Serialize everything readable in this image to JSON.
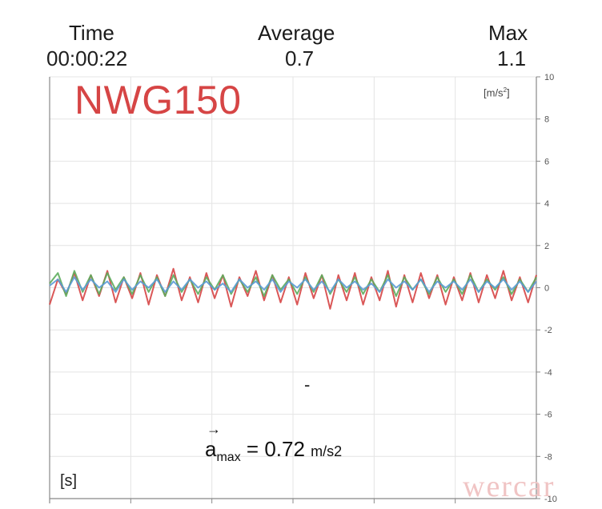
{
  "header": {
    "time_label": "Time",
    "time_value": "00:00:22",
    "average_label": "Average",
    "average_value": "0.7",
    "max_label": "Max",
    "max_value": "1.1"
  },
  "device_name": "NWG150",
  "chart_labels": {
    "y_unit": "[m/s",
    "y_unit_sup": "2",
    "y_unit_close": "]",
    "x_unit": "[s]",
    "dash": "-"
  },
  "readout": {
    "arrow": "→",
    "symbol": "a",
    "subscript": "max",
    "equals_value": " = 0.72 ",
    "unit": "m/s2"
  },
  "watermark": "wercar",
  "colors": {
    "red": "#d64545",
    "green": "#5cac5c",
    "blue": "#5b9bd5",
    "grid": "#e4e4e4",
    "axis": "#888888"
  },
  "chart_data": {
    "type": "line",
    "ylim": [
      -10,
      10
    ],
    "y_ticks": [
      10,
      8,
      6,
      4,
      2,
      0,
      -2,
      -4,
      -6,
      -8,
      -10
    ],
    "xlabel": "[s]",
    "ylabel": "[m/s2]",
    "grid": true,
    "series": [
      {
        "color": "red",
        "values": [
          -0.8,
          0.4,
          -0.3,
          0.7,
          -0.6,
          0.6,
          -0.4,
          0.8,
          -0.7,
          0.5,
          -0.5,
          0.7,
          -0.8,
          0.6,
          -0.4,
          0.9,
          -0.6,
          0.5,
          -0.7,
          0.7,
          -0.5,
          0.6,
          -0.9,
          0.5,
          -0.4,
          0.8,
          -0.6,
          0.6,
          -0.7,
          0.5,
          -0.8,
          0.7,
          -0.5,
          0.6,
          -1.0,
          0.6,
          -0.6,
          0.7,
          -0.8,
          0.5,
          -0.6,
          0.8,
          -0.9,
          0.6,
          -0.7,
          0.7,
          -0.5,
          0.6,
          -0.8,
          0.5,
          -0.6,
          0.7,
          -0.7,
          0.6,
          -0.5,
          0.8,
          -0.6,
          0.5,
          -0.7,
          0.6
        ]
      },
      {
        "color": "green",
        "values": [
          0.2,
          0.7,
          -0.4,
          0.8,
          -0.2,
          0.6,
          -0.3,
          0.7,
          -0.1,
          0.5,
          -0.3,
          0.6,
          -0.2,
          0.5,
          -0.4,
          0.6,
          -0.2,
          0.4,
          -0.3,
          0.5,
          -0.1,
          0.6,
          -0.3,
          0.4,
          -0.2,
          0.5,
          -0.4,
          0.6,
          -0.1,
          0.4,
          -0.3,
          0.5,
          -0.2,
          0.6,
          -0.3,
          0.4,
          -0.2,
          0.5,
          -0.3,
          0.4,
          -0.2,
          0.6,
          -0.4,
          0.5,
          -0.1,
          0.4,
          -0.3,
          0.5,
          -0.2,
          0.4,
          -0.3,
          0.6,
          -0.2,
          0.4,
          -0.1,
          0.5,
          -0.3,
          0.4,
          -0.2,
          0.5
        ]
      },
      {
        "color": "blue",
        "values": [
          0.1,
          0.4,
          -0.2,
          0.5,
          -0.1,
          0.4,
          0.0,
          0.3,
          -0.2,
          0.4,
          -0.1,
          0.3,
          0.0,
          0.4,
          -0.2,
          0.3,
          -0.1,
          0.4,
          0.0,
          0.3,
          -0.1,
          0.2,
          -0.2,
          0.4,
          0.0,
          0.3,
          -0.1,
          0.4,
          -0.2,
          0.3,
          0.0,
          0.4,
          -0.1,
          0.3,
          -0.2,
          0.4,
          0.0,
          0.3,
          -0.1,
          0.2,
          -0.2,
          0.4,
          0.0,
          0.3,
          -0.1,
          0.4,
          -0.2,
          0.3,
          0.0,
          0.3,
          -0.1,
          0.4,
          -0.2,
          0.3,
          0.0,
          0.4,
          -0.1,
          0.3,
          -0.2,
          0.3
        ]
      }
    ]
  }
}
